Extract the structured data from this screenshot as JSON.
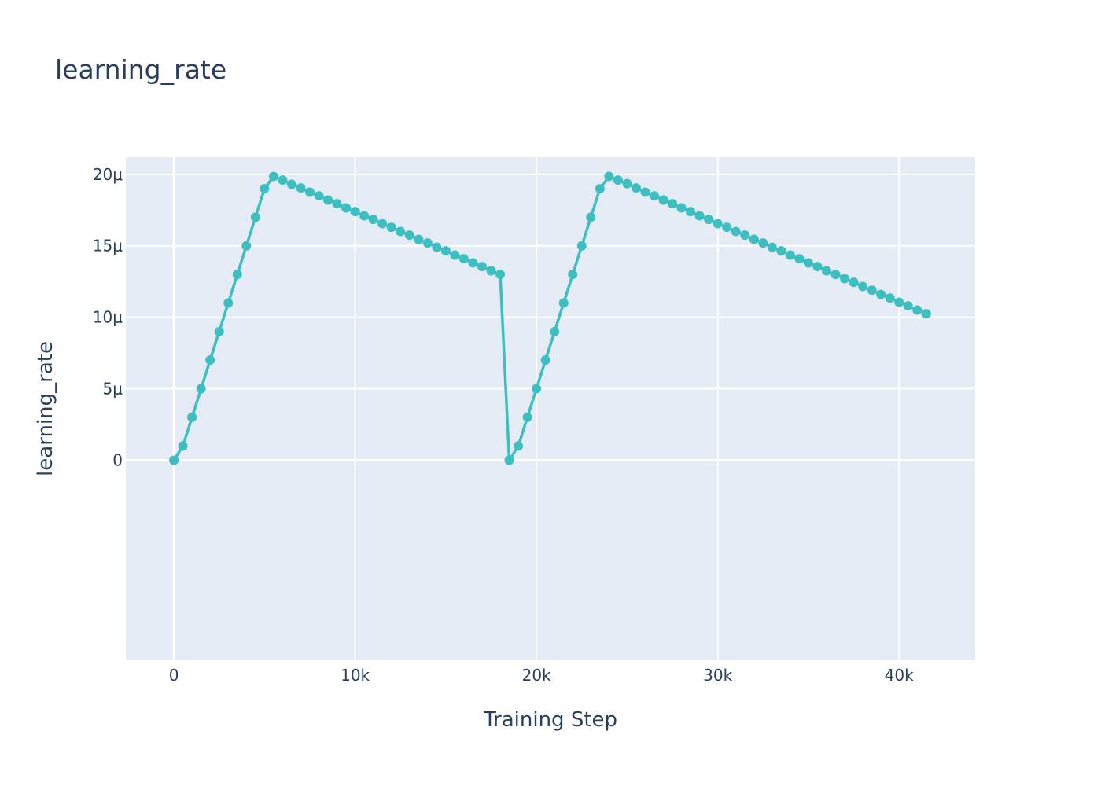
{
  "chart_data": {
    "type": "line",
    "title": "learning_rate",
    "xlabel": "Training Step",
    "ylabel": "learning_rate",
    "xlim": [
      -2650,
      44200
    ],
    "ylim": [
      -1.4e-05,
      2.12e-05
    ],
    "x_ticks": [
      0,
      10000,
      20000,
      30000,
      40000
    ],
    "x_tick_labels": [
      "0",
      "10k",
      "20k",
      "30k",
      "40k"
    ],
    "y_ticks": [
      0,
      5e-06,
      1e-05,
      1.5e-05,
      2e-05
    ],
    "y_tick_labels": [
      "0",
      "5μ",
      "10μ",
      "15μ",
      "20μ"
    ],
    "grid": true,
    "legend": "none",
    "colors": {
      "line": "#3dbfc2",
      "plot_bg": "#e5ecf6",
      "grid": "#ffffff",
      "text": "#2a3f5f"
    },
    "series": [
      {
        "x": [
          0,
          500,
          1000,
          1500,
          2000,
          2500,
          3000,
          3500,
          4000,
          4500,
          5000,
          5500,
          6000,
          6500,
          7000,
          7500,
          8000,
          8500,
          9000,
          9500,
          10000,
          10500,
          11000,
          11500,
          12000,
          12500,
          13000,
          13500,
          14000,
          14500,
          15000,
          15500,
          16000,
          16500,
          17000,
          17500,
          18000,
          18500,
          19000,
          19500,
          20000,
          20500,
          21000,
          21500,
          22000,
          22500,
          23000,
          23500,
          24000,
          24500,
          25000,
          25500,
          26000,
          26500,
          27000,
          27500,
          28000,
          28500,
          29000,
          29500,
          30000,
          30500,
          31000,
          31500,
          32000,
          32500,
          33000,
          33500,
          34000,
          34500,
          35000,
          35500,
          36000,
          36500,
          37000,
          37500,
          38000,
          38500,
          39000,
          39500,
          40000,
          40500,
          41000,
          41500
        ],
        "y": [
          0,
          1e-06,
          3e-06,
          5e-06,
          7e-06,
          9e-06,
          1.1e-05,
          1.3e-05,
          1.5e-05,
          1.7e-05,
          1.9e-05,
          1.985e-05,
          1.96e-05,
          1.93e-05,
          1.905e-05,
          1.875e-05,
          1.85e-05,
          1.82e-05,
          1.795e-05,
          1.765e-05,
          1.74e-05,
          1.71e-05,
          1.685e-05,
          1.655e-05,
          1.63e-05,
          1.6e-05,
          1.575e-05,
          1.545e-05,
          1.52e-05,
          1.49e-05,
          1.465e-05,
          1.435e-05,
          1.41e-05,
          1.38e-05,
          1.355e-05,
          1.325e-05,
          1.3e-05,
          0,
          1e-06,
          3e-06,
          5e-06,
          7e-06,
          9e-06,
          1.1e-05,
          1.3e-05,
          1.5e-05,
          1.7e-05,
          1.9e-05,
          1.985e-05,
          1.96e-05,
          1.935e-05,
          1.905e-05,
          1.875e-05,
          1.85e-05,
          1.82e-05,
          1.795e-05,
          1.765e-05,
          1.74e-05,
          1.71e-05,
          1.685e-05,
          1.655e-05,
          1.63e-05,
          1.6e-05,
          1.575e-05,
          1.545e-05,
          1.52e-05,
          1.49e-05,
          1.465e-05,
          1.435e-05,
          1.41e-05,
          1.38e-05,
          1.355e-05,
          1.325e-05,
          1.3e-05,
          1.27e-05,
          1.245e-05,
          1.215e-05,
          1.19e-05,
          1.16e-05,
          1.135e-05,
          1.105e-05,
          1.08e-05,
          1.05e-05,
          1.025e-05
        ]
      }
    ]
  }
}
